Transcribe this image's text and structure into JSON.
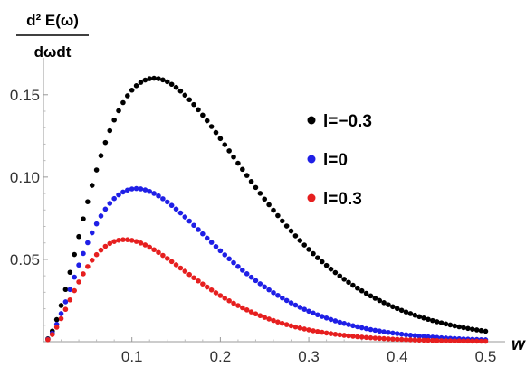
{
  "chart_data": {
    "type": "scatter",
    "title": "",
    "ylabel_numerator": "d² E(ω)",
    "ylabel_denominator": "dωdt",
    "xlabel": "w",
    "xlim": [
      0,
      0.52
    ],
    "ylim": [
      0,
      0.168
    ],
    "x_ticks": [
      0.1,
      0.2,
      0.3,
      0.4,
      0.5
    ],
    "x_tick_labels": [
      "0.1",
      "0.2",
      "0.3",
      "0.4",
      "0.5"
    ],
    "y_ticks": [
      0.05,
      0.1,
      0.15
    ],
    "y_tick_labels": [
      "0.05",
      "0.10",
      "0.15"
    ],
    "grid": false,
    "legend_position": "right",
    "sampling": {
      "x_start": 0.005,
      "x_end": 0.5,
      "step": 0.005
    },
    "series": [
      {
        "name": "l=−0.3",
        "color": "#000000",
        "peak_x": 0.125,
        "peak_y": 0.16
      },
      {
        "name": "l=0",
        "color": "#1f1fe6",
        "peak_x": 0.105,
        "peak_y": 0.093
      },
      {
        "name": "l=0.3",
        "color": "#e61f1f",
        "peak_x": 0.092,
        "peak_y": 0.062
      }
    ]
  }
}
